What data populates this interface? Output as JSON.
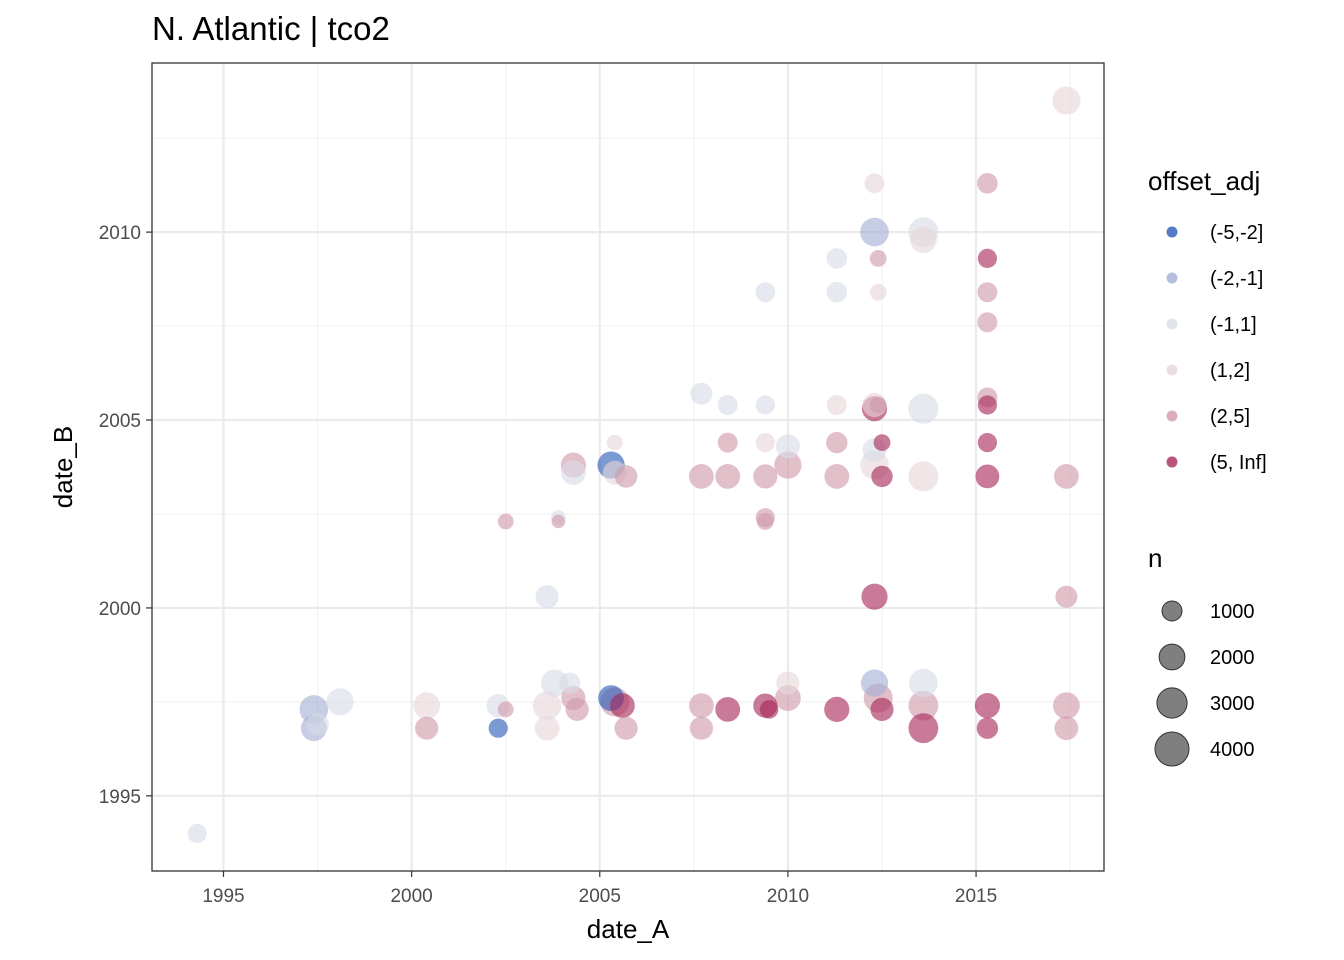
{
  "chart_data": {
    "type": "scatter",
    "title": "N. Atlantic | tco2",
    "xlabel": "date_A",
    "ylabel": "date_B",
    "xlim": [
      1993.1,
      2018.4
    ],
    "ylim": [
      1993.0,
      2014.5
    ],
    "x_ticks": [
      1995,
      2000,
      2005,
      2010,
      2015
    ],
    "y_ticks": [
      1995,
      2000,
      2005,
      2010
    ],
    "grid": true,
    "color_legend": {
      "title": "offset_adj",
      "position": "right",
      "categories": [
        {
          "label": "(-5,-2]",
          "color": "#2a5bb8"
        },
        {
          "label": "(-2,-1]",
          "color": "#a3aed3"
        },
        {
          "label": "(-1,1]",
          "color": "#d9dce6"
        },
        {
          "label": "(1,2]",
          "color": "#e6d6da"
        },
        {
          "label": "(2,5]",
          "color": "#cf9aa9"
        },
        {
          "label": "(5, Inf]",
          "color": "#a62859"
        }
      ]
    },
    "size_legend": {
      "title": "n",
      "values": [
        1000,
        2000,
        3000,
        4000
      ]
    },
    "points": [
      {
        "x": 1994.3,
        "y": 1994.0,
        "n": 900,
        "cat": "(-1,1]"
      },
      {
        "x": 1997.4,
        "y": 1996.8,
        "n": 2000,
        "cat": "(-2,-1]"
      },
      {
        "x": 1997.4,
        "y": 1997.3,
        "n": 2600,
        "cat": "(-2,-1]"
      },
      {
        "x": 1997.5,
        "y": 1996.9,
        "n": 1400,
        "cat": "(-1,1]"
      },
      {
        "x": 1998.1,
        "y": 1997.5,
        "n": 2300,
        "cat": "(-1,1]"
      },
      {
        "x": 2000.4,
        "y": 1997.4,
        "n": 2200,
        "cat": "(1,2]"
      },
      {
        "x": 2000.4,
        "y": 1996.8,
        "n": 1500,
        "cat": "(2,5]"
      },
      {
        "x": 2002.3,
        "y": 1996.8,
        "n": 900,
        "cat": "(-5,-2]"
      },
      {
        "x": 2002.3,
        "y": 1997.4,
        "n": 1500,
        "cat": "(-1,1]"
      },
      {
        "x": 2002.5,
        "y": 1997.3,
        "n": 500,
        "cat": "(2,5]"
      },
      {
        "x": 2002.5,
        "y": 2002.3,
        "n": 500,
        "cat": "(2,5]"
      },
      {
        "x": 2003.6,
        "y": 1996.8,
        "n": 1800,
        "cat": "(1,2]"
      },
      {
        "x": 2003.6,
        "y": 1997.4,
        "n": 2600,
        "cat": "(1,2]"
      },
      {
        "x": 2003.6,
        "y": 2000.3,
        "n": 1500,
        "cat": "(-1,1]"
      },
      {
        "x": 2003.8,
        "y": 1998.0,
        "n": 2300,
        "cat": "(-1,1]"
      },
      {
        "x": 2003.9,
        "y": 2002.4,
        "n": 400,
        "cat": "(-1,1]"
      },
      {
        "x": 2003.9,
        "y": 2002.3,
        "n": 300,
        "cat": "(2,5]"
      },
      {
        "x": 2004.2,
        "y": 1998.0,
        "n": 1200,
        "cat": "(-1,1]"
      },
      {
        "x": 2004.3,
        "y": 2003.6,
        "n": 1800,
        "cat": "(-1,1]"
      },
      {
        "x": 2004.3,
        "y": 2003.8,
        "n": 1900,
        "cat": "(2,5]"
      },
      {
        "x": 2004.3,
        "y": 1997.6,
        "n": 1700,
        "cat": "(2,5]"
      },
      {
        "x": 2004.4,
        "y": 1997.3,
        "n": 1500,
        "cat": "(2,5]"
      },
      {
        "x": 2005.3,
        "y": 1997.6,
        "n": 2000,
        "cat": "(-5,-2]"
      },
      {
        "x": 2005.3,
        "y": 2003.8,
        "n": 2300,
        "cat": "(-5,-2]"
      },
      {
        "x": 2005.4,
        "y": 2004.4,
        "n": 500,
        "cat": "(1,2]"
      },
      {
        "x": 2005.4,
        "y": 2003.6,
        "n": 1600,
        "cat": "(1,2]"
      },
      {
        "x": 2005.4,
        "y": 1997.5,
        "n": 2700,
        "cat": "(2,5]"
      },
      {
        "x": 2005.6,
        "y": 1997.4,
        "n": 1800,
        "cat": "(5, Inf]"
      },
      {
        "x": 2005.7,
        "y": 2003.5,
        "n": 1400,
        "cat": "(2,5]"
      },
      {
        "x": 2005.7,
        "y": 1996.8,
        "n": 1500,
        "cat": "(2,5]"
      },
      {
        "x": 2007.7,
        "y": 1996.8,
        "n": 1500,
        "cat": "(2,5]"
      },
      {
        "x": 2007.7,
        "y": 1997.4,
        "n": 1800,
        "cat": "(2,5]"
      },
      {
        "x": 2007.7,
        "y": 2003.5,
        "n": 1800,
        "cat": "(2,5]"
      },
      {
        "x": 2007.7,
        "y": 2005.7,
        "n": 1300,
        "cat": "(-1,1]"
      },
      {
        "x": 2008.4,
        "y": 2005.4,
        "n": 1000,
        "cat": "(-1,1]"
      },
      {
        "x": 2008.4,
        "y": 2004.4,
        "n": 1000,
        "cat": "(2,5]"
      },
      {
        "x": 2008.4,
        "y": 2003.5,
        "n": 1800,
        "cat": "(2,5]"
      },
      {
        "x": 2008.4,
        "y": 1997.3,
        "n": 1800,
        "cat": "(5, Inf]"
      },
      {
        "x": 2009.4,
        "y": 2008.4,
        "n": 1000,
        "cat": "(-1,1]"
      },
      {
        "x": 2009.4,
        "y": 2005.4,
        "n": 900,
        "cat": "(-1,1]"
      },
      {
        "x": 2009.4,
        "y": 2004.4,
        "n": 900,
        "cat": "(1,2]"
      },
      {
        "x": 2009.4,
        "y": 2003.5,
        "n": 1700,
        "cat": "(2,5]"
      },
      {
        "x": 2009.4,
        "y": 2002.4,
        "n": 900,
        "cat": "(2,5]"
      },
      {
        "x": 2009.4,
        "y": 2002.3,
        "n": 600,
        "cat": "(2,5]"
      },
      {
        "x": 2009.4,
        "y": 1997.4,
        "n": 1700,
        "cat": "(5, Inf]"
      },
      {
        "x": 2009.5,
        "y": 1997.3,
        "n": 800,
        "cat": "(5, Inf]"
      },
      {
        "x": 2010.0,
        "y": 2004.3,
        "n": 1700,
        "cat": "(-1,1]"
      },
      {
        "x": 2010.0,
        "y": 2003.8,
        "n": 2300,
        "cat": "(2,5]"
      },
      {
        "x": 2010.0,
        "y": 1998.0,
        "n": 1500,
        "cat": "(1,2]"
      },
      {
        "x": 2010.0,
        "y": 1997.6,
        "n": 2000,
        "cat": "(2,5]"
      },
      {
        "x": 2011.3,
        "y": 2009.3,
        "n": 1100,
        "cat": "(-1,1]"
      },
      {
        "x": 2011.3,
        "y": 2008.4,
        "n": 1100,
        "cat": "(-1,1]"
      },
      {
        "x": 2011.3,
        "y": 2005.4,
        "n": 1000,
        "cat": "(1,2]"
      },
      {
        "x": 2011.3,
        "y": 2004.4,
        "n": 1200,
        "cat": "(2,5]"
      },
      {
        "x": 2011.3,
        "y": 2003.5,
        "n": 1800,
        "cat": "(2,5]"
      },
      {
        "x": 2011.3,
        "y": 1997.3,
        "n": 1900,
        "cat": "(5, Inf]"
      },
      {
        "x": 2012.3,
        "y": 2011.3,
        "n": 1000,
        "cat": "(1,2]"
      },
      {
        "x": 2012.3,
        "y": 2010.0,
        "n": 2600,
        "cat": "(-2,-1]"
      },
      {
        "x": 2012.3,
        "y": 2005.3,
        "n": 1900,
        "cat": "(5, Inf]"
      },
      {
        "x": 2012.3,
        "y": 2005.4,
        "n": 1700,
        "cat": "(1,2]"
      },
      {
        "x": 2012.3,
        "y": 2004.2,
        "n": 1600,
        "cat": "(-1,1]"
      },
      {
        "x": 2012.3,
        "y": 2003.8,
        "n": 2600,
        "cat": "(1,2]"
      },
      {
        "x": 2012.3,
        "y": 2000.3,
        "n": 2100,
        "cat": "(5, Inf]"
      },
      {
        "x": 2012.3,
        "y": 1998.0,
        "n": 2300,
        "cat": "(-2,-1]"
      },
      {
        "x": 2012.4,
        "y": 1997.6,
        "n": 2700,
        "cat": "(2,5]"
      },
      {
        "x": 2012.4,
        "y": 2009.3,
        "n": 600,
        "cat": "(2,5]"
      },
      {
        "x": 2012.4,
        "y": 2008.4,
        "n": 600,
        "cat": "(1,2]"
      },
      {
        "x": 2012.4,
        "y": 2005.4,
        "n": 600,
        "cat": "(2,5]"
      },
      {
        "x": 2012.5,
        "y": 2004.4,
        "n": 600,
        "cat": "(5, Inf]"
      },
      {
        "x": 2012.5,
        "y": 2003.5,
        "n": 1200,
        "cat": "(5, Inf]"
      },
      {
        "x": 2012.5,
        "y": 1997.3,
        "n": 1500,
        "cat": "(5, Inf]"
      },
      {
        "x": 2013.6,
        "y": 2010.0,
        "n": 2900,
        "cat": "(-1,1]"
      },
      {
        "x": 2013.6,
        "y": 2009.8,
        "n": 2200,
        "cat": "(1,2]"
      },
      {
        "x": 2013.6,
        "y": 2005.3,
        "n": 3000,
        "cat": "(-1,1]"
      },
      {
        "x": 2013.6,
        "y": 2003.5,
        "n": 3000,
        "cat": "(1,2]"
      },
      {
        "x": 2013.6,
        "y": 1998.0,
        "n": 2600,
        "cat": "(-1,1]"
      },
      {
        "x": 2013.6,
        "y": 1997.4,
        "n": 2900,
        "cat": "(2,5]"
      },
      {
        "x": 2013.6,
        "y": 1996.8,
        "n": 2900,
        "cat": "(5, Inf]"
      },
      {
        "x": 2015.3,
        "y": 2011.3,
        "n": 1100,
        "cat": "(2,5]"
      },
      {
        "x": 2015.3,
        "y": 2009.3,
        "n": 900,
        "cat": "(5, Inf]"
      },
      {
        "x": 2015.3,
        "y": 2008.4,
        "n": 1000,
        "cat": "(2,5]"
      },
      {
        "x": 2015.3,
        "y": 2007.6,
        "n": 1000,
        "cat": "(2,5]"
      },
      {
        "x": 2015.3,
        "y": 2005.6,
        "n": 1000,
        "cat": "(2,5]"
      },
      {
        "x": 2015.3,
        "y": 2005.4,
        "n": 900,
        "cat": "(5, Inf]"
      },
      {
        "x": 2015.3,
        "y": 2004.4,
        "n": 900,
        "cat": "(5, Inf]"
      },
      {
        "x": 2015.3,
        "y": 2003.5,
        "n": 1600,
        "cat": "(5, Inf]"
      },
      {
        "x": 2015.3,
        "y": 1997.4,
        "n": 1900,
        "cat": "(5, Inf]"
      },
      {
        "x": 2015.3,
        "y": 1996.8,
        "n": 1200,
        "cat": "(5, Inf]"
      },
      {
        "x": 2017.4,
        "y": 2013.5,
        "n": 2500,
        "cat": "(1,2]"
      },
      {
        "x": 2017.4,
        "y": 2003.5,
        "n": 1800,
        "cat": "(2,5]"
      },
      {
        "x": 2017.4,
        "y": 2000.3,
        "n": 1300,
        "cat": "(2,5]"
      },
      {
        "x": 2017.4,
        "y": 1997.4,
        "n": 2200,
        "cat": "(2,5]"
      },
      {
        "x": 2017.4,
        "y": 1996.8,
        "n": 1600,
        "cat": "(2,5]"
      }
    ]
  }
}
